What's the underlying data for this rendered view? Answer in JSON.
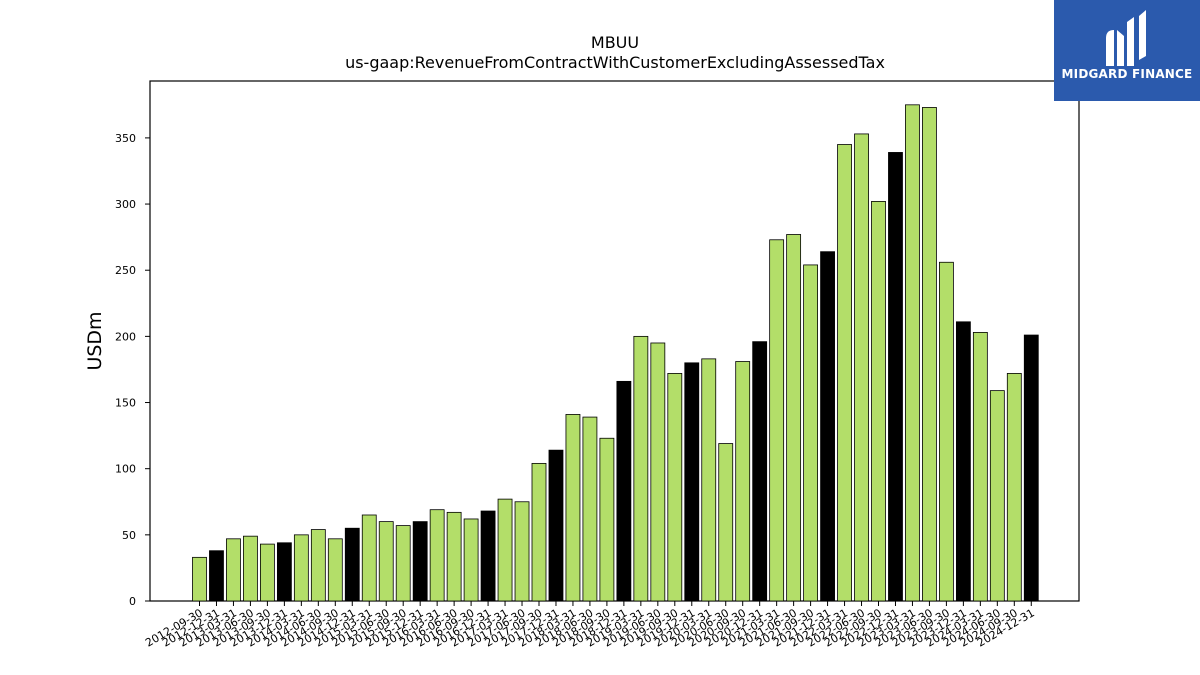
{
  "logo": {
    "text": "MIDGARD FINANCE"
  },
  "colors": {
    "bar": "#b3de69",
    "highlight": "#000000",
    "logo_bg": "#2b5aad"
  },
  "chart_data": {
    "type": "bar",
    "title": "MBUU",
    "subtitle": "us-gaap:RevenueFromContractWithCustomerExcludingAssessedTax",
    "xlabel": "",
    "ylabel": "USDm",
    "ylim": [
      0,
      393
    ],
    "yticks": [
      0,
      50,
      100,
      150,
      200,
      250,
      300,
      350
    ],
    "grid": false,
    "categories": [
      "2012-09-30",
      "2012-12-31",
      "2013-03-31",
      "2013-06-30",
      "2013-09-30",
      "2013-12-31",
      "2014-03-31",
      "2014-06-30",
      "2014-09-30",
      "2014-12-31",
      "2015-03-31",
      "2015-06-30",
      "2015-09-30",
      "2015-12-31",
      "2016-03-31",
      "2016-06-30",
      "2016-09-30",
      "2016-12-31",
      "2017-03-31",
      "2017-06-30",
      "2017-09-30",
      "2017-12-31",
      "2018-03-31",
      "2018-06-30",
      "2018-09-30",
      "2018-12-31",
      "2019-03-31",
      "2019-06-30",
      "2019-09-30",
      "2019-12-31",
      "2020-03-31",
      "2020-06-30",
      "2020-09-30",
      "2020-12-31",
      "2021-03-31",
      "2021-06-30",
      "2021-09-30",
      "2021-12-31",
      "2022-03-31",
      "2022-06-30",
      "2022-09-30",
      "2022-12-31",
      "2023-03-31",
      "2023-06-30",
      "2023-09-30",
      "2023-12-31",
      "2024-03-31",
      "2024-06-30",
      "2024-09-30",
      "2024-12-31"
    ],
    "values": [
      33,
      38,
      47,
      49,
      43,
      44,
      50,
      54,
      47,
      55,
      65,
      60,
      57,
      60,
      69,
      67,
      62,
      68,
      77,
      75,
      104,
      114,
      141,
      139,
      123,
      166,
      200,
      195,
      172,
      180,
      183,
      119,
      181,
      196,
      273,
      277,
      254,
      264,
      345,
      353,
      302,
      339,
      375,
      373,
      256,
      211,
      203,
      159,
      172,
      201
    ],
    "highlighted": [
      false,
      true,
      false,
      false,
      false,
      true,
      false,
      false,
      false,
      true,
      false,
      false,
      false,
      true,
      false,
      false,
      false,
      true,
      false,
      false,
      false,
      true,
      false,
      false,
      false,
      true,
      false,
      false,
      false,
      true,
      false,
      false,
      false,
      true,
      false,
      false,
      false,
      true,
      false,
      false,
      false,
      true,
      false,
      false,
      false,
      true,
      false,
      false,
      false,
      true
    ]
  }
}
